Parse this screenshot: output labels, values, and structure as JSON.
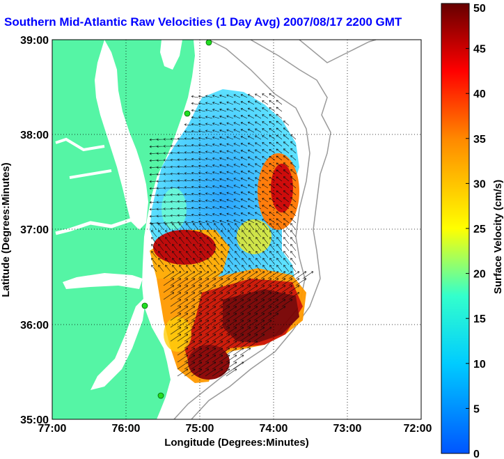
{
  "title": "Southern Mid-Atlantic Raw Velocities (1 Day Avg) 2007/08/17 2200 GMT",
  "map": {
    "xlabel": "Longitude (Degrees:Minutes)",
    "ylabel": "Latitude (Degrees:Minutes)",
    "x_ticks": [
      "77:00",
      "76:00",
      "75:00",
      "74:00",
      "73:00",
      "72:00"
    ],
    "y_ticks": [
      "39:00",
      "38:00",
      "37:00",
      "36:00",
      "35:00"
    ],
    "land_color": "#55f5a5",
    "station_color": "#22dd22"
  },
  "colorbar": {
    "label": "Surface Velocity (cm/s)",
    "ticks": [
      "50",
      "45",
      "40",
      "35",
      "30",
      "25",
      "20",
      "15",
      "10",
      "5",
      "0"
    ],
    "range": [
      0,
      50
    ]
  }
}
